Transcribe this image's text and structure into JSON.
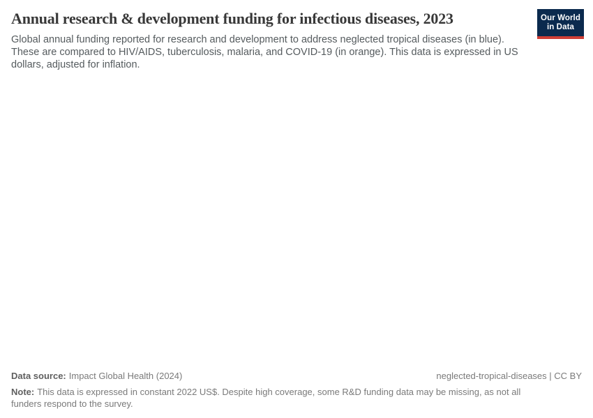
{
  "header": {
    "title": "Annual research & development funding for infectious diseases, 2023",
    "subtitle": "Global annual funding reported for research and development to address neglected tropical diseases (in blue). These are compared to HIV/AIDS, tuberculosis, malaria, and COVID-19 (in orange). This data is expressed in US dollars, adjusted for inflation."
  },
  "logo": {
    "line1": "Our World",
    "line2": "in Data",
    "background_color": "#0b2a4e",
    "accent_color": "#cf3e36"
  },
  "chart_data": {
    "type": "line",
    "title": "Annual research & development funding for infectious diseases, 2023",
    "series": [],
    "categories": [],
    "plot_rendered": false,
    "mentioned_series_colors": {
      "neglected tropical diseases": "blue",
      "HIV/AIDS, tuberculosis, malaria, and COVID-19": "orange"
    }
  },
  "footer": {
    "datasource_label": "Data source:",
    "datasource_value": "Impact Global Health (2024)",
    "rights": "neglected-tropical-diseases | CC BY",
    "note_label": "Note:",
    "note_text": "This data is expressed in constant 2022 US$. Despite high coverage, some R&D funding data may be missing, as not all funders respond to the survey."
  },
  "colors": {
    "title_text": "#383838",
    "subtitle_text": "#555b5e",
    "footer_text": "#7a7a7a",
    "background": "#ffffff"
  }
}
